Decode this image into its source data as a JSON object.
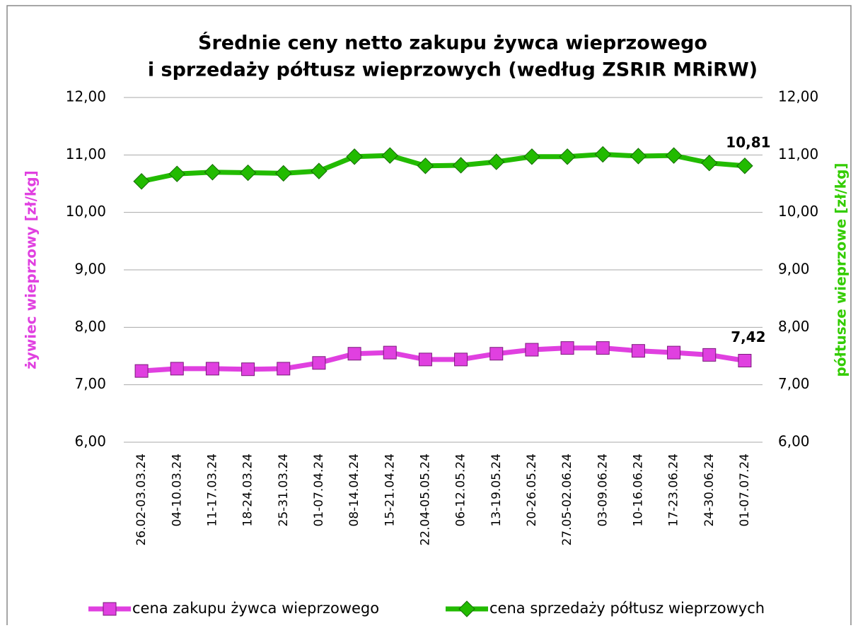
{
  "chart_data": {
    "type": "line",
    "title": "Średnie ceny netto zakupu żywca wieprzowego",
    "subtitle": "i sprzedaży półtusz wieprzowych (według ZSRIR MRiRW)",
    "y_label": "żywiec  wieprzowy [zł/kg]",
    "y2_label": "półtusze wieprzowe [zł/kg]",
    "categories": [
      "26.02-03.03.24",
      "04-10.03.24",
      "11-17.03.24",
      "18-24.03.24",
      "25-31.03.24",
      "01-07.04.24",
      "08-14.04.24",
      "15-21.04.24",
      "22.04-05.05.24",
      "06-12.05.24",
      "13-19.05.24",
      "20-26.05.24",
      "27.05-02.06.24",
      "03-09.06.24",
      "10-16.06.24",
      "17-23.06.24",
      "24-30.06.24",
      "01-07.07.24"
    ],
    "ylim": [
      6,
      12
    ],
    "yticks": [
      {
        "value": 6,
        "label": "6,00"
      },
      {
        "value": 7,
        "label": "7,00"
      },
      {
        "value": 8,
        "label": "8,00"
      },
      {
        "value": 9,
        "label": "9,00"
      },
      {
        "value": 10,
        "label": "10,00"
      },
      {
        "value": 11,
        "label": "11,00"
      },
      {
        "value": 12,
        "label": "12,00"
      }
    ],
    "y2lim": [
      6,
      12
    ],
    "y2ticks": [
      {
        "value": 6,
        "label": "6,00"
      },
      {
        "value": 7,
        "label": "7,00"
      },
      {
        "value": 8,
        "label": "8,00"
      },
      {
        "value": 9,
        "label": "9,00"
      },
      {
        "value": 10,
        "label": "10,00"
      },
      {
        "value": 11,
        "label": "11,00"
      },
      {
        "value": 12,
        "label": "12,00"
      }
    ],
    "grid": true,
    "y_label_color": "#e040e0",
    "y2_label_color": "#33cc00",
    "series": [
      {
        "name": "cena zakupu żywca wieprzowego",
        "color": "#e040e0",
        "marker": "square",
        "values": [
          7.24,
          7.28,
          7.28,
          7.27,
          7.28,
          7.38,
          7.54,
          7.56,
          7.44,
          7.44,
          7.54,
          7.61,
          7.64,
          7.64,
          7.59,
          7.56,
          7.52,
          7.42
        ],
        "value_labels": [
          null,
          null,
          null,
          null,
          null,
          null,
          null,
          null,
          null,
          null,
          null,
          null,
          null,
          null,
          null,
          null,
          null,
          "7,42"
        ]
      },
      {
        "name": "cena sprzedaży półtusz wieprzowych",
        "color": "#22bb00",
        "marker": "diamond",
        "axis": "y2",
        "values": [
          10.54,
          10.67,
          10.7,
          10.69,
          10.68,
          10.72,
          10.97,
          10.99,
          10.81,
          10.82,
          10.88,
          10.97,
          10.97,
          11.01,
          10.98,
          10.99,
          10.86,
          10.81
        ],
        "value_labels": [
          null,
          null,
          null,
          null,
          null,
          null,
          null,
          null,
          null,
          null,
          null,
          null,
          null,
          null,
          null,
          null,
          null,
          "10,81"
        ]
      }
    ]
  }
}
